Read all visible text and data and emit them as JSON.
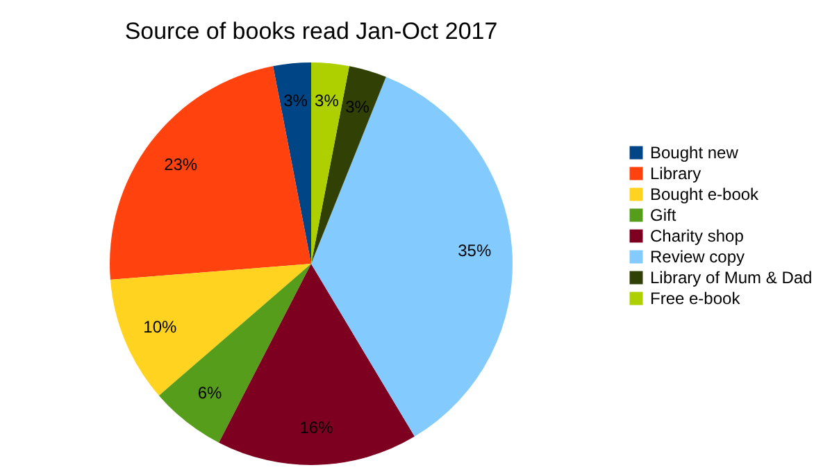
{
  "chart_data": {
    "type": "pie",
    "title": "Source of books read Jan-Oct 2017",
    "categories": [
      "Bought new",
      "Library",
      "Bought e-book",
      "Gift",
      "Charity shop",
      "Review copy",
      "Library of Mum & Dad",
      "Free e-book"
    ],
    "values": [
      3,
      23,
      10,
      6,
      16,
      35,
      3,
      3
    ],
    "value_labels": [
      "3%",
      "23%",
      "10%",
      "6%",
      "16%",
      "35%",
      "3%",
      "3%"
    ],
    "colors": [
      "#004586",
      "#ff420e",
      "#ffd320",
      "#579d1c",
      "#7e0021",
      "#83caff",
      "#314004",
      "#aecf00"
    ],
    "legend": "right"
  }
}
